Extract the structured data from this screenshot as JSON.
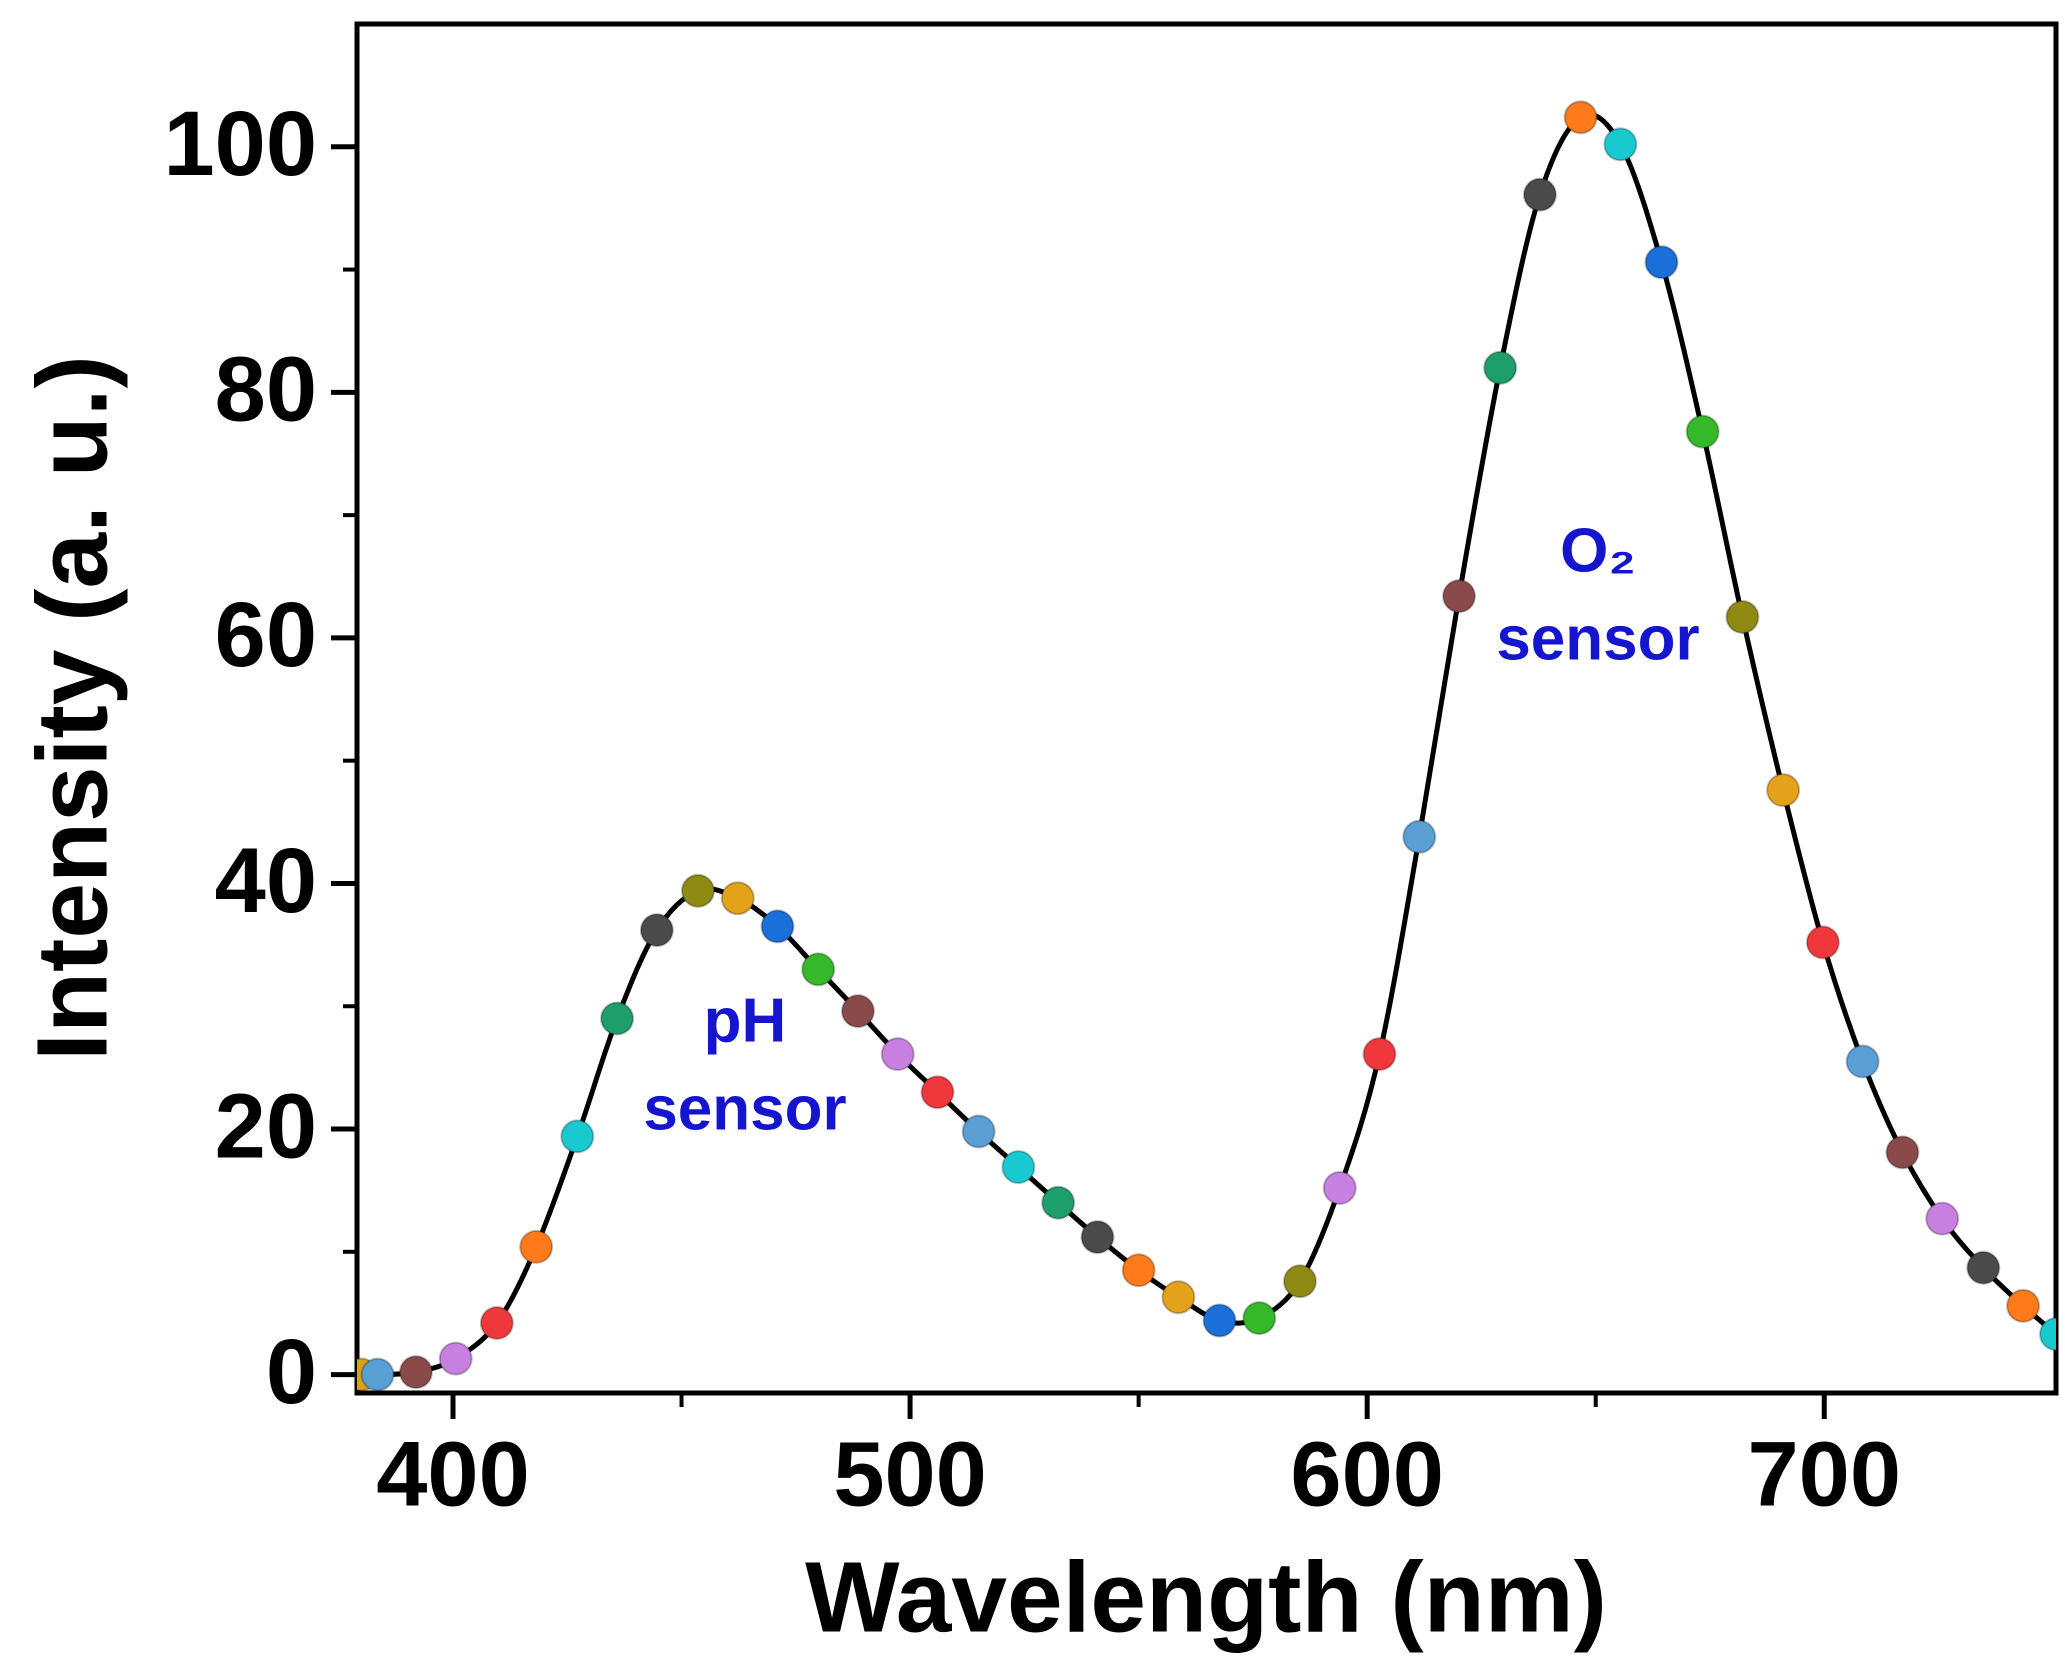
{
  "chart_data": {
    "type": "line",
    "x_label": "Wavelength (nm)",
    "y_label": "Intensity (a. u.)",
    "x": [
      380.0,
      383.5,
      391.9,
      400.6,
      409.6,
      418.2,
      427.2,
      435.9,
      444.6,
      453.6,
      462.3,
      471.0,
      479.9,
      488.6,
      497.3,
      506.0,
      515.0,
      523.7,
      532.4,
      541.0,
      550.0,
      558.7,
      567.7,
      576.4,
      585.3,
      594.0,
      602.7,
      611.4,
      620.1,
      629.1,
      637.8,
      646.7,
      655.4,
      664.4,
      673.4,
      682.1,
      691.0,
      699.7,
      708.4,
      717.1,
      725.8,
      734.8,
      743.5,
      750.7
    ],
    "values": [
      0,
      0,
      0.2,
      1.3,
      4.2,
      10.4,
      19.4,
      29.0,
      36.2,
      39.4,
      38.8,
      36.5,
      33.0,
      29.6,
      26.1,
      23.0,
      19.8,
      16.9,
      14.0,
      11.2,
      8.5,
      6.3,
      4.4,
      4.6,
      7.6,
      15.2,
      26.1,
      43.8,
      63.4,
      82.0,
      96.1,
      102.4,
      100.2,
      90.6,
      76.8,
      61.7,
      47.6,
      35.2,
      25.5,
      18.1,
      12.7,
      8.7,
      5.6,
      3.3
    ],
    "line_color": "#000000",
    "marker_colors": [
      "#d9a21b",
      "#5a9fd4",
      "#8b4a4a",
      "#c77fe0",
      "#f0383c",
      "#ff7a1a",
      "#19c9d0",
      "#1e9e6a",
      "#4a4a4a",
      "#8f8a14",
      "#e3a21a",
      "#1a6fd8",
      "#35b82a",
      "#8b4a4a",
      "#c77fe0",
      "#f0383c",
      "#5a9fd4",
      "#19c9d0",
      "#1e9e6a",
      "#4a4a4a",
      "#ff7a1a",
      "#e3a21a",
      "#1a6fd8",
      "#35b82a",
      "#8f8a14",
      "#c77fe0",
      "#f0383c",
      "#5a9fd4",
      "#8b4a4a",
      "#1e9e6a",
      "#4a4a4a",
      "#ff7a1a",
      "#19c9d0",
      "#1a6fd8",
      "#35b82a",
      "#8f8a14",
      "#e3a21a",
      "#f0383c",
      "#5a9fd4",
      "#8b4a4a",
      "#c77fe0",
      "#4a4a4a",
      "#ff7a1a",
      "#19c9d0"
    ],
    "xlim": [
      379,
      750.7
    ],
    "ylim": [
      -1.5,
      110
    ],
    "xticks": [
      400,
      500,
      600,
      700
    ],
    "yticks": [
      0,
      20,
      40,
      60,
      80,
      100
    ],
    "xticks_minor": [
      450,
      550,
      650
    ],
    "yticks_minor": [
      10,
      30,
      50,
      70,
      90
    ],
    "annotations": [
      {
        "lines": [
          "pH",
          "sensor"
        ],
        "color": "#1515d0"
      },
      {
        "lines": [
          "O₂",
          "sensor"
        ],
        "color": "#1515d0"
      }
    ]
  }
}
